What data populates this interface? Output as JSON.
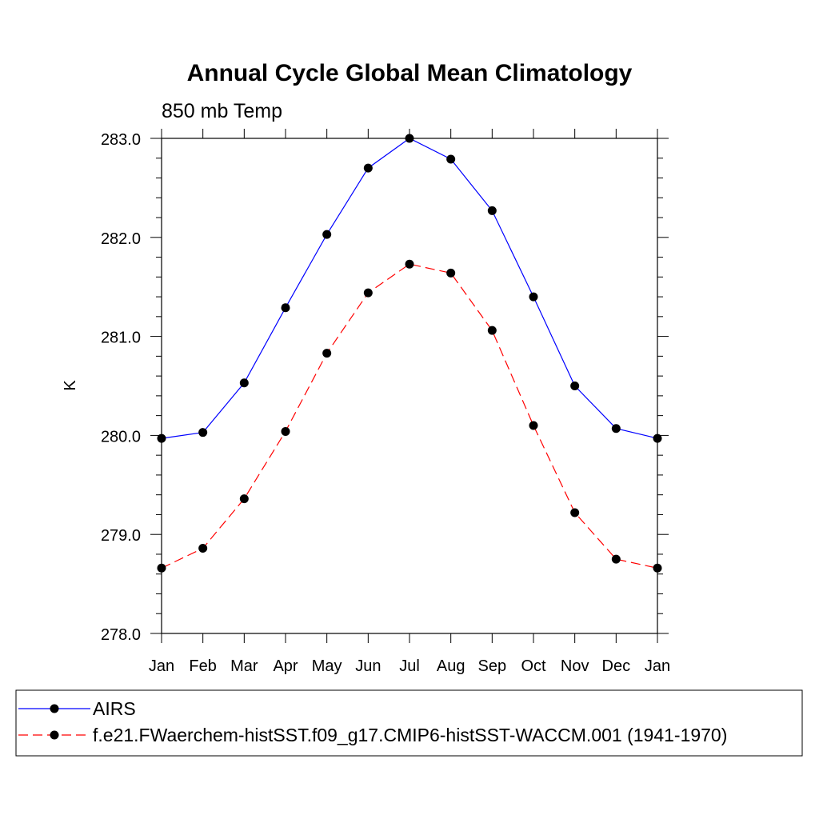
{
  "chart_data": {
    "type": "line",
    "title": "Annual Cycle Global Mean Climatology",
    "subtitle": "850 mb Temp",
    "xlabel": "",
    "ylabel": "K",
    "categories": [
      "Jan",
      "Feb",
      "Mar",
      "Apr",
      "May",
      "Jun",
      "Jul",
      "Aug",
      "Sep",
      "Oct",
      "Nov",
      "Dec",
      "Jan"
    ],
    "ylim": [
      278.0,
      283.0
    ],
    "yticks": [
      "278.0",
      "279.0",
      "280.0",
      "281.0",
      "282.0",
      "283.0"
    ],
    "grid": false,
    "legend_position": "bottom",
    "series": [
      {
        "name": "AIRS",
        "color": "#0000ff",
        "line_style": "solid",
        "values": [
          279.97,
          280.03,
          280.53,
          281.29,
          282.03,
          282.7,
          283.0,
          282.79,
          282.27,
          281.4,
          280.5,
          280.07,
          279.97
        ]
      },
      {
        "name": "f.e21.FWaerchem-histSST.f09_g17.CMIP6-histSST-WACCM.001 (1941-1970)",
        "color": "#ff0000",
        "line_style": "dashed",
        "values": [
          278.66,
          278.86,
          279.36,
          280.04,
          280.83,
          281.44,
          281.73,
          281.64,
          281.06,
          280.1,
          279.22,
          278.75,
          278.66
        ]
      }
    ]
  }
}
